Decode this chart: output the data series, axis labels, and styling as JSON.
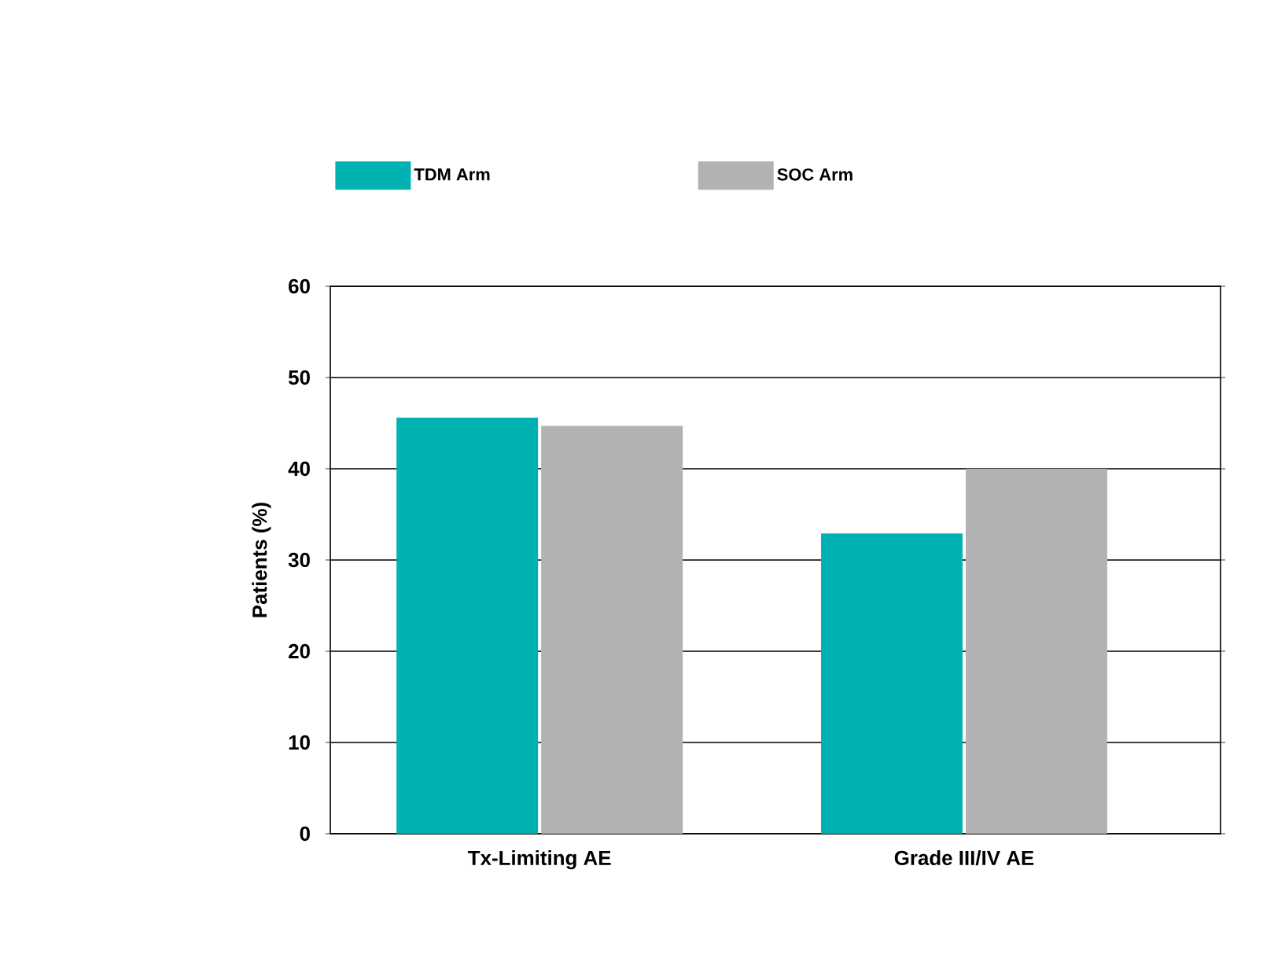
{
  "chart_data": {
    "type": "bar",
    "ylabel": "Patients (%)",
    "categories": [
      "Tx-Limiting AE",
      "Grade III/IV AE"
    ],
    "series": [
      {
        "name": "TDM Arm",
        "color": "#00b2b2",
        "values": [
          45.6,
          32.9
        ]
      },
      {
        "name": "SOC Arm",
        "color": "#b2b2b2",
        "values": [
          44.7,
          40
        ]
      }
    ],
    "ylim": [
      0,
      60
    ],
    "yticks": [
      0,
      10,
      20,
      30,
      40,
      50,
      60
    ],
    "grid": "y",
    "legend": "top"
  }
}
